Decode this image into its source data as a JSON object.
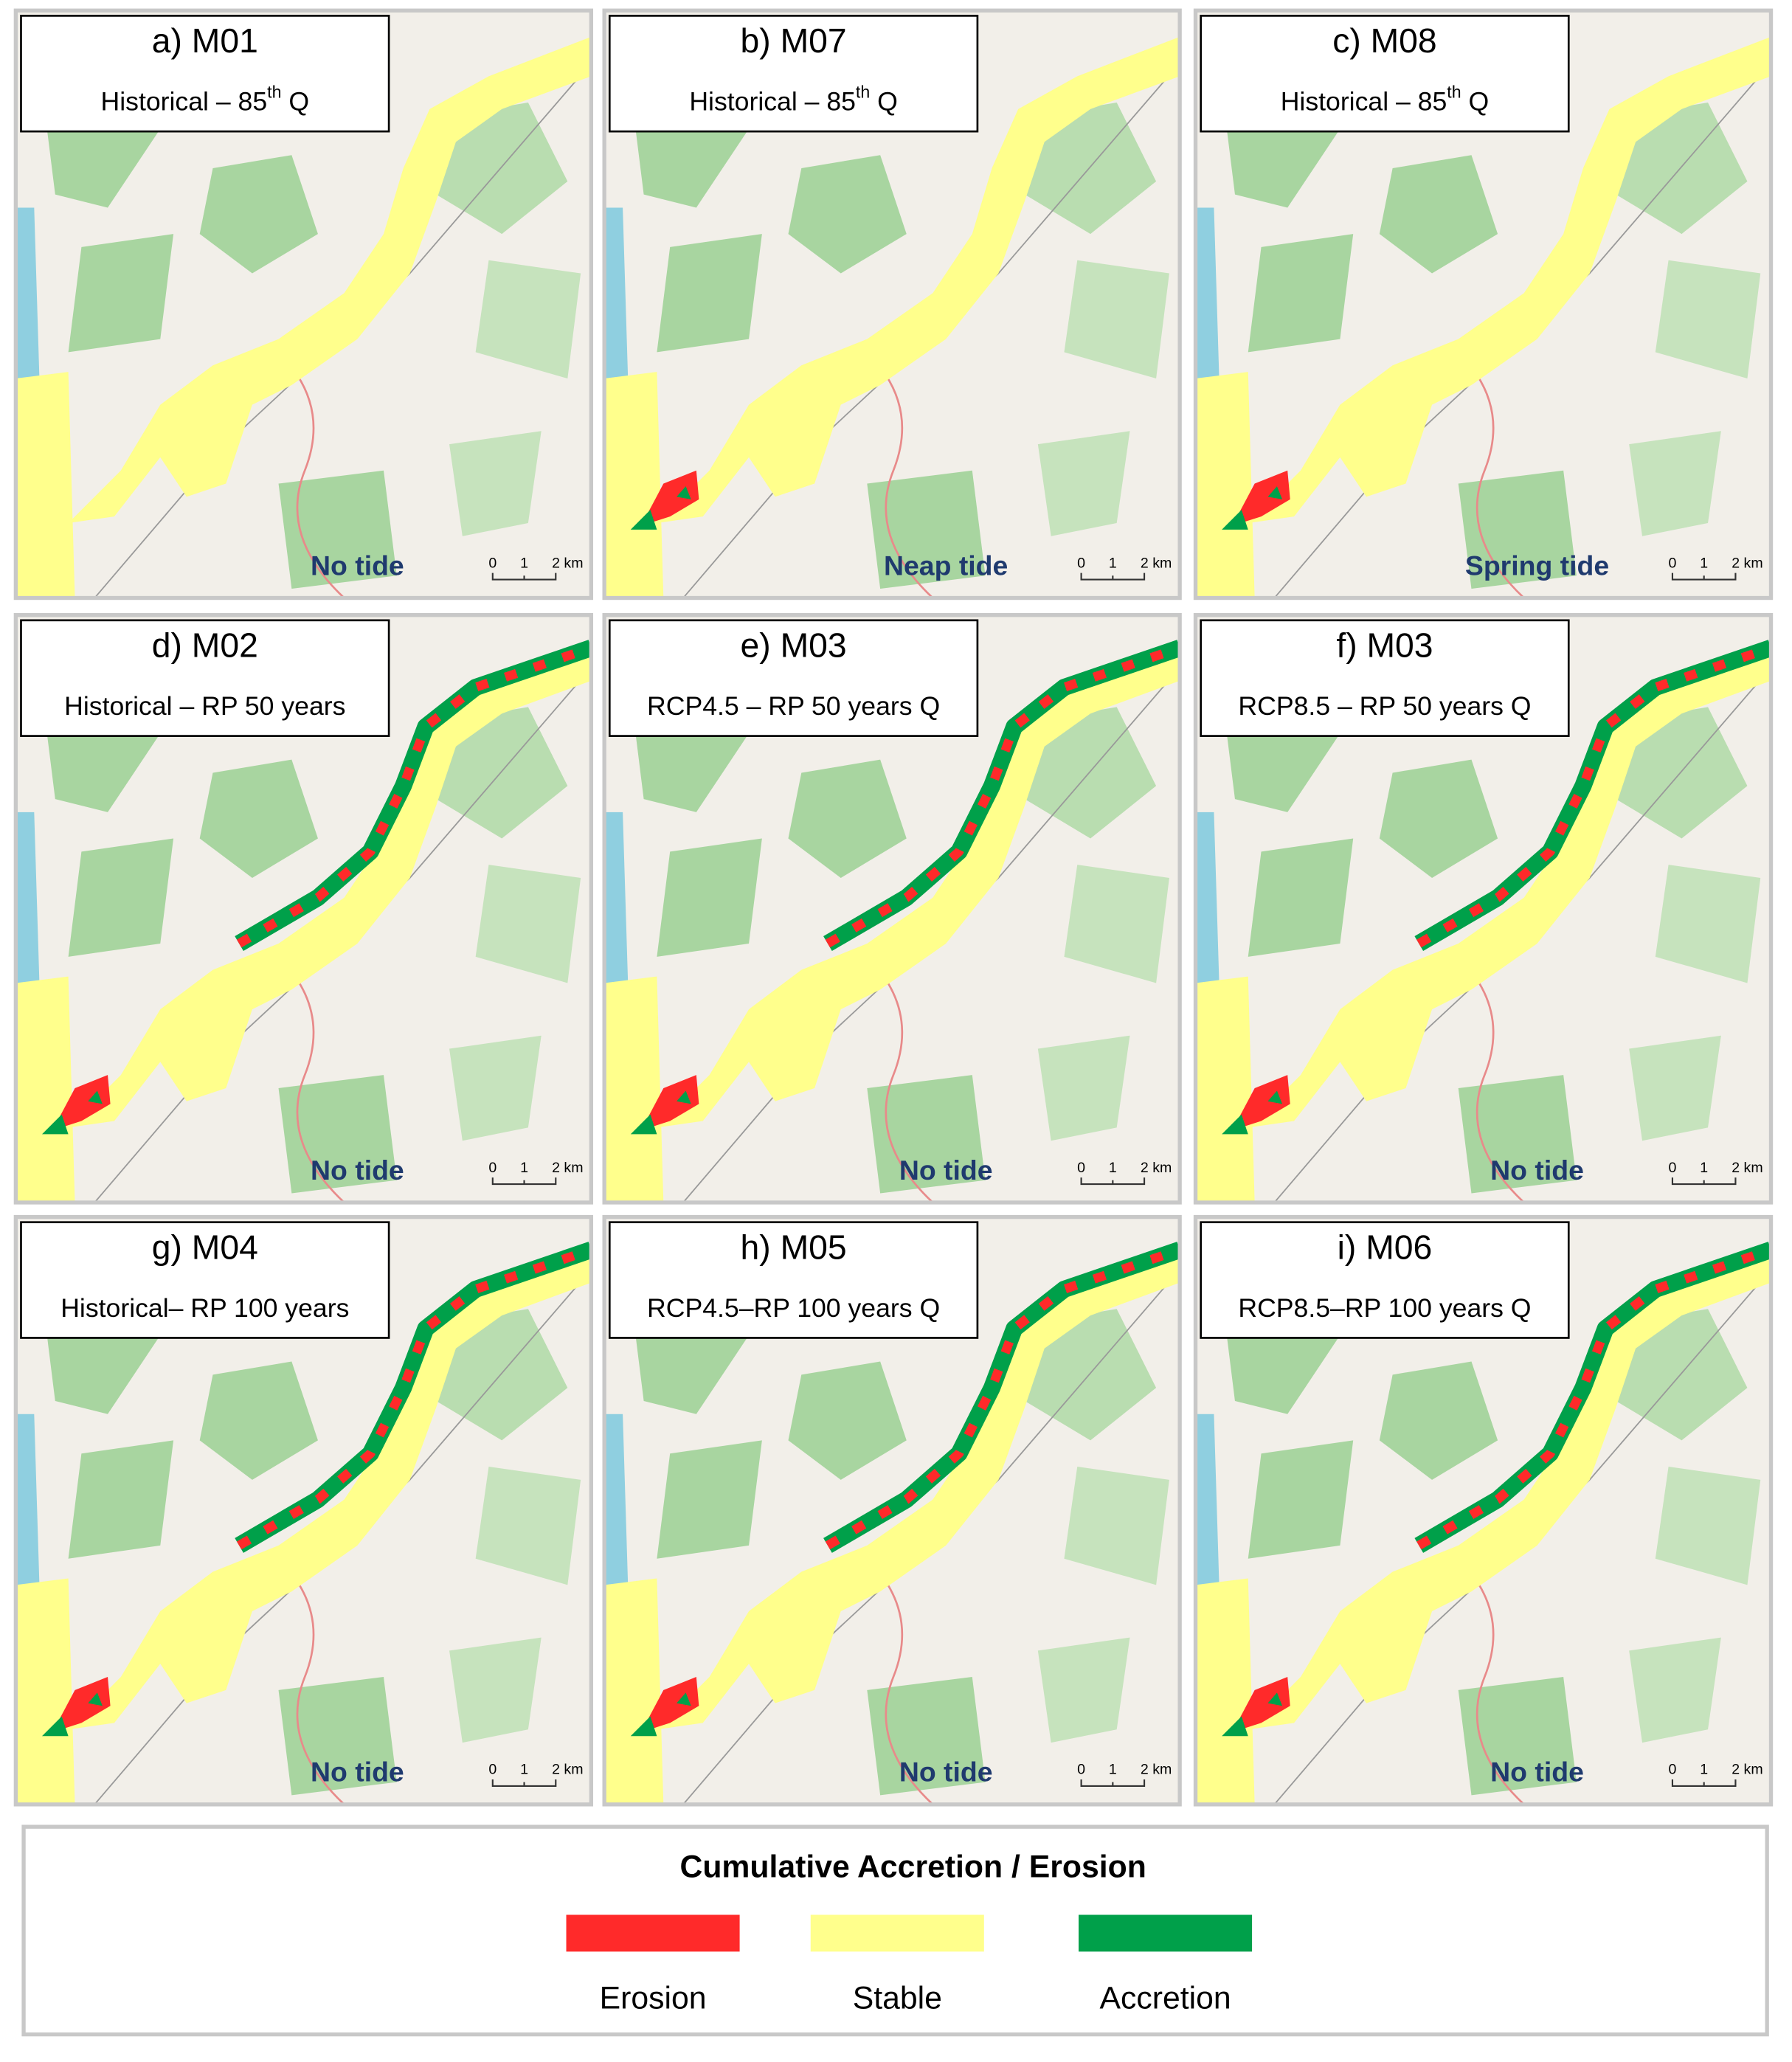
{
  "panels": [
    {
      "label": "a) M01",
      "subtitle": {
        "text": "Historical – 85",
        "sup": "th",
        "after": " Q"
      },
      "tide": "No tide"
    },
    {
      "label": "b) M07",
      "subtitle": {
        "text": "Historical – 85",
        "sup": "th",
        "after": " Q"
      },
      "tide": "Neap tide"
    },
    {
      "label": "c) M08",
      "subtitle": {
        "text": "Historical – 85",
        "sup": "th",
        "after": " Q"
      },
      "tide": "Spring tide"
    },
    {
      "label": "d) M02",
      "subtitle": {
        "text": "Historical – RP 50 years"
      },
      "tide": "No tide"
    },
    {
      "label": "e) M03",
      "subtitle": {
        "text": "RCP4.5 – RP 50 years Q"
      },
      "tide": "No tide"
    },
    {
      "label": "f) M03",
      "subtitle": {
        "text": "RCP8.5 – RP 50 years Q"
      },
      "tide": "No tide"
    },
    {
      "label": "g) M04",
      "subtitle": {
        "text": "Historical– RP 100 years"
      },
      "tide": "No tide"
    },
    {
      "label": "h) M05",
      "subtitle": {
        "text": "RCP4.5–RP 100 years Q"
      },
      "tide": "No tide"
    },
    {
      "label": "i) M06",
      "subtitle": {
        "text": "RCP8.5–RP 100 years Q"
      },
      "tide": "No tide"
    }
  ],
  "scale_bar": [
    "0",
    "1",
    "2 km"
  ],
  "legend": {
    "title": "Cumulative Accretion / Erosion",
    "items": [
      {
        "label": "Erosion",
        "color": "#ff2a2a"
      },
      {
        "label": "Stable",
        "color": "#ffff8c"
      },
      {
        "label": "Accretion",
        "color": "#00a04a"
      }
    ]
  }
}
